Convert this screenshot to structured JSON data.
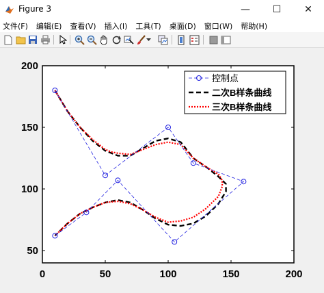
{
  "window": {
    "title": "Figure 3",
    "minimize_glyph": "—",
    "maximize_glyph": "☐",
    "close_glyph": "✕"
  },
  "menu": [
    {
      "label": "文件(F)"
    },
    {
      "label": "编辑(E)"
    },
    {
      "label": "查看(V)"
    },
    {
      "label": "插入(I)"
    },
    {
      "label": "工具(T)"
    },
    {
      "label": "桌面(D)"
    },
    {
      "label": "窗口(W)"
    },
    {
      "label": "帮助(H)"
    }
  ],
  "toolbar": {
    "icons": [
      "new-figure-icon",
      "open-file-icon",
      "save-icon",
      "print-icon",
      "pointer-icon",
      "zoom-in-icon",
      "zoom-out-icon",
      "pan-icon",
      "rotate-3d-icon",
      "data-cursor-icon",
      "brush-icon",
      "brush-dropdown-icon",
      "link-plot-icon",
      "colorbar-icon",
      "legend-icon",
      "hide-plot-tools-icon",
      "show-plot-tools-icon"
    ]
  },
  "chart_data": {
    "type": "line",
    "xlim": [
      0,
      200
    ],
    "ylim": [
      40,
      200
    ],
    "xticks": [
      0,
      50,
      100,
      150,
      200
    ],
    "yticks": [
      50,
      100,
      150,
      200
    ],
    "xtick_labels": [
      "0",
      "50",
      "100",
      "150",
      "200"
    ],
    "ytick_labels": [
      "50",
      "100",
      "150",
      "200"
    ],
    "grid": false,
    "legend_position": "top-right",
    "series": [
      {
        "name": "控制点",
        "style": "dashed-circles",
        "color": "#2020e0",
        "x": [
          10,
          50,
          100,
          120,
          160,
          105,
          60,
          35,
          10
        ],
        "y": [
          180,
          111,
          150,
          121,
          106,
          57,
          107,
          81,
          62
        ]
      },
      {
        "name": "二次B样条曲线",
        "style": "dashed",
        "color": "#000000",
        "x": [
          10,
          20,
          30,
          40,
          50,
          55,
          60,
          70,
          80,
          90,
          100,
          110,
          120,
          130,
          140,
          146,
          146,
          140,
          130,
          120,
          110,
          100,
          90,
          80,
          70,
          60,
          50,
          40,
          30,
          20,
          10
        ],
        "y": [
          180,
          163,
          150,
          139,
          131,
          129,
          127,
          127,
          133,
          139,
          141,
          138,
          125,
          118,
          110,
          104,
          98,
          88,
          78,
          72,
          70,
          71,
          76,
          83,
          89,
          91,
          89,
          85,
          80,
          72,
          62
        ]
      },
      {
        "name": "三次B样条曲线",
        "style": "dotted",
        "color": "#ff0000",
        "x": [
          10,
          20,
          30,
          40,
          50,
          55,
          60,
          70,
          80,
          90,
          100,
          110,
          120,
          130,
          140,
          143,
          143,
          140,
          130,
          120,
          110,
          100,
          90,
          80,
          70,
          60,
          50,
          40,
          30,
          20,
          10
        ],
        "y": [
          180,
          163,
          150,
          140,
          132,
          130,
          129,
          128,
          132,
          136,
          138,
          136,
          125,
          118,
          112,
          107,
          102,
          94,
          84,
          77,
          74,
          73,
          77,
          83,
          88,
          90,
          89,
          85,
          80,
          72,
          62
        ]
      }
    ]
  }
}
